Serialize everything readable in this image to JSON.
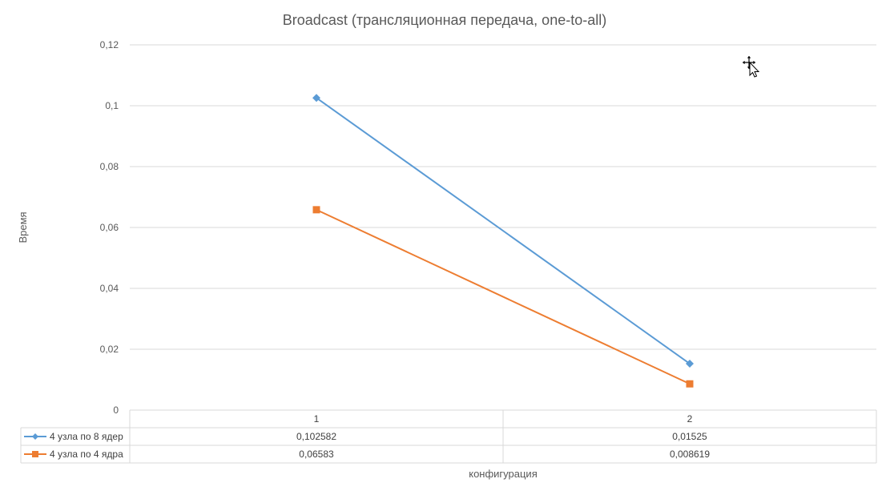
{
  "chart_data": {
    "type": "line",
    "title": "Broadcast (трансляционная передача, one-to-all)",
    "xlabel": "конфигурация",
    "ylabel": "Время",
    "categories": [
      "1",
      "2"
    ],
    "ylim": [
      0,
      0.12
    ],
    "yticks": [
      "0",
      "0,02",
      "0,04",
      "0,06",
      "0,08",
      "0,1",
      "0,12"
    ],
    "grid": true,
    "legend": "data-table",
    "series": [
      {
        "name": "4 узла по 8 ядер",
        "values": [
          0.102582,
          0.01525
        ],
        "labels": [
          "0,102582",
          "0,01525"
        ],
        "color": "#5B9BD5",
        "marker": "diamond"
      },
      {
        "name": "4 узла по 4 ядра",
        "values": [
          0.06583,
          0.008619
        ],
        "labels": [
          "0,06583",
          "0,008619"
        ],
        "color": "#ED7D31",
        "marker": "square"
      }
    ]
  },
  "cursor": {
    "icon": "move-cursor-icon"
  }
}
